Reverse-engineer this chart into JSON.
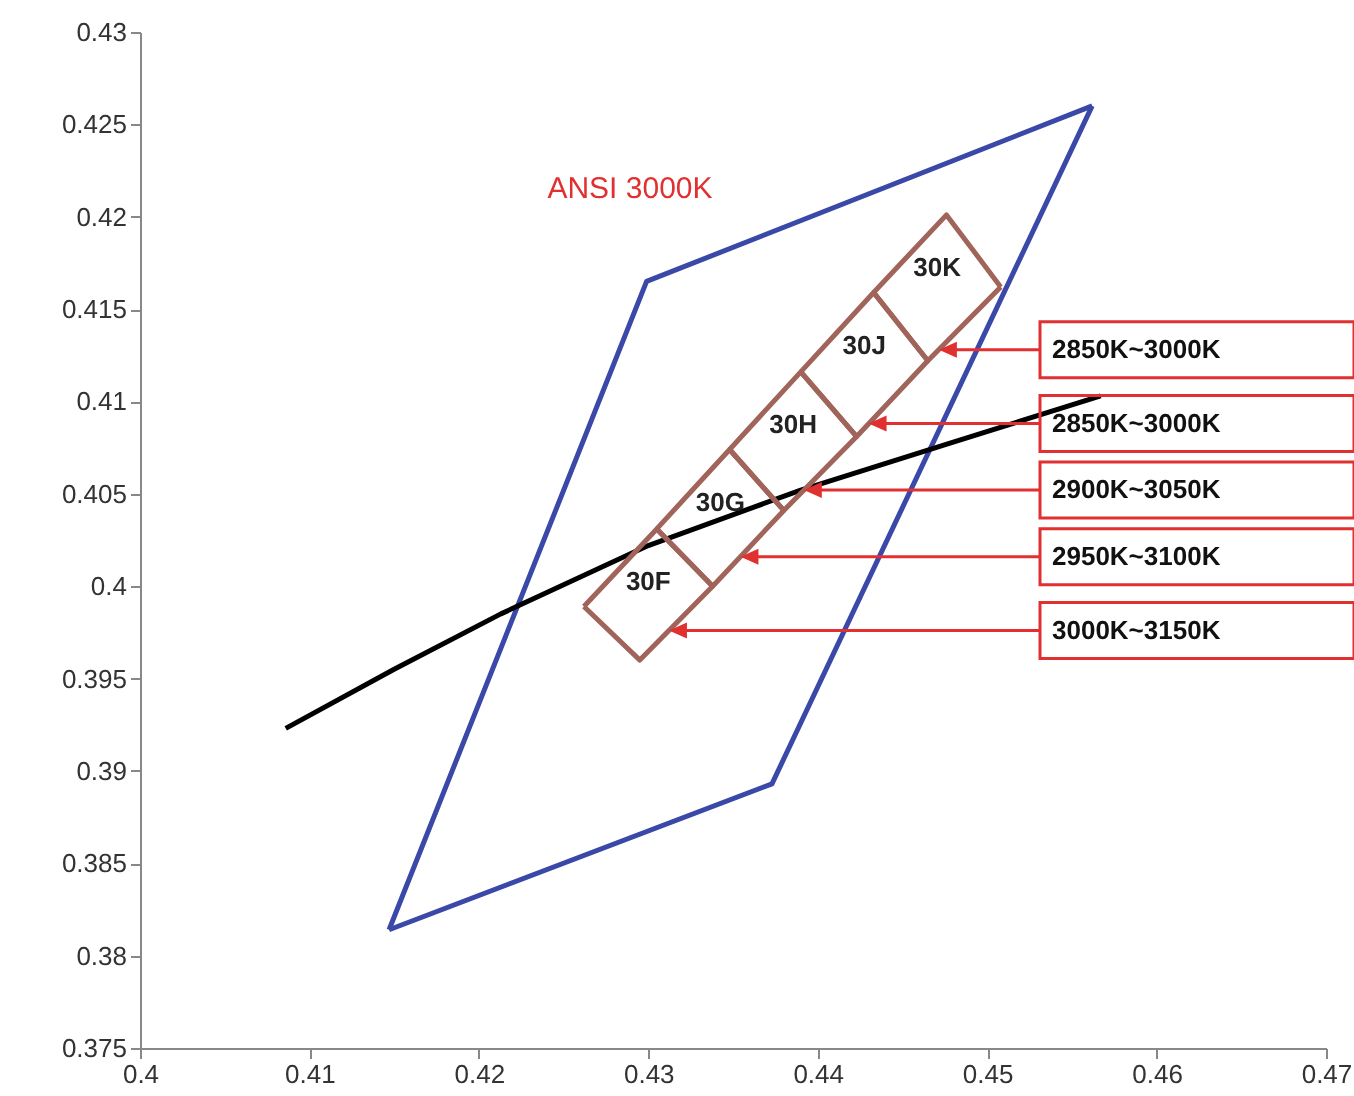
{
  "chart_data": {
    "type": "line",
    "xlim": [
      0.4,
      0.47
    ],
    "xticks": [
      0.4,
      0.41,
      0.42,
      0.43,
      0.44,
      0.45,
      0.46,
      0.47
    ],
    "ylim": [
      0.375,
      0.43
    ],
    "yticks": [
      0.375,
      0.38,
      0.385,
      0.39,
      0.395,
      0.4,
      0.405,
      0.41,
      0.415,
      0.42,
      0.425,
      0.43
    ],
    "grid": false,
    "marker": "none",
    "line_style": "solid",
    "series": [
      {
        "color": "#3a48a8",
        "x": [
          0.4147,
          0.4299,
          0.4562
        ],
        "values": [
          0.3814,
          0.4165,
          0.426
        ]
      },
      {
        "color": "#3a48a8",
        "x": [
          0.4147,
          0.4373,
          0.4562
        ],
        "values": [
          0.3814,
          0.3893,
          0.426
        ]
      },
      {
        "color": "#000000",
        "x": [
          0.4086,
          0.415,
          0.4213,
          0.43,
          0.439,
          0.448,
          0.4567
        ],
        "values": [
          0.3923,
          0.3955,
          0.3985,
          0.4022,
          0.4052,
          0.4078,
          0.4103
        ]
      },
      {
        "name": "30F",
        "color": "#a0645a",
        "x": [
          0.4262,
          0.4305,
          0.4338
        ],
        "values": [
          0.3989,
          0.4031,
          0.4
        ]
      },
      {
        "color": "#a0645a",
        "x": [
          0.4262,
          0.4295,
          0.4338
        ],
        "values": [
          0.3989,
          0.396,
          0.4
        ]
      },
      {
        "name": "30G",
        "color": "#a0645a",
        "x": [
          0.4305,
          0.4348,
          0.438
        ],
        "values": [
          0.4031,
          0.4074,
          0.4041
        ]
      },
      {
        "color": "#a0645a",
        "x": [
          0.4305,
          0.4338,
          0.438
        ],
        "values": [
          0.4031,
          0.4,
          0.4041
        ]
      },
      {
        "name": "30H",
        "color": "#a0645a",
        "x": [
          0.4348,
          0.439,
          0.4423
        ],
        "values": [
          0.4074,
          0.4116,
          0.4081
        ]
      },
      {
        "color": "#a0645a",
        "x": [
          0.4348,
          0.438,
          0.4423
        ],
        "values": [
          0.4074,
          0.4041,
          0.4081
        ]
      },
      {
        "name": "30J",
        "color": "#a0645a",
        "x": [
          0.439,
          0.4433,
          0.4465
        ],
        "values": [
          0.4116,
          0.4159,
          0.4122
        ]
      },
      {
        "color": "#a0645a",
        "x": [
          0.439,
          0.4423,
          0.4465
        ],
        "values": [
          0.4116,
          0.4081,
          0.4122
        ]
      },
      {
        "name": "30K",
        "color": "#a0645a",
        "x": [
          0.4433,
          0.4476,
          0.4508
        ],
        "values": [
          0.4159,
          0.4201,
          0.4162
        ]
      },
      {
        "color": "#a0645a",
        "x": [
          0.4433,
          0.4465,
          0.4508
        ],
        "values": [
          0.4159,
          0.4122,
          0.4162
        ]
      }
    ],
    "annotations": [
      "ANSI 3000K",
      {
        "text": "2850K~3000K",
        "x": 0.44715,
        "y": 0.4128
      },
      {
        "text": "2850K~3000K",
        "x": 0.443,
        "y": 0.4088
      },
      {
        "text": "2900K~3050K",
        "x": 0.43918,
        "y": 0.4052
      },
      {
        "text": "2950K~3100K",
        "x": 0.43544,
        "y": 0.4016
      },
      {
        "text": "3000K~3150K",
        "x": 0.43122,
        "y": 0.3976
      }
    ]
  }
}
